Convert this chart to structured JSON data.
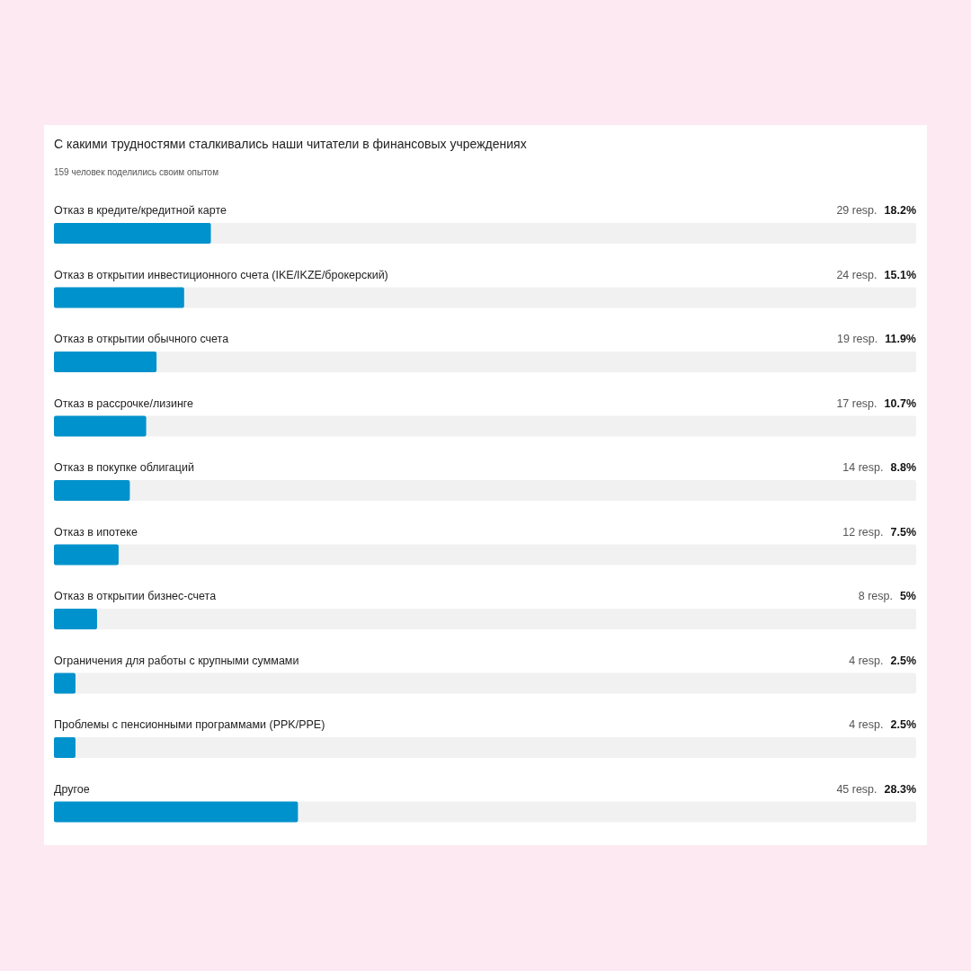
{
  "chart_data": {
    "type": "bar",
    "orientation": "horizontal",
    "title": "С какими трудностями сталкивались наши читатели в финансовых учреждениях",
    "subtitle": "159 человек поделились своим опытом",
    "categories": [
      "Отказ в кредите/кредитной карте",
      "Отказ в открытии инвестиционного счета (IKE/IKZE/брокерский)",
      "Отказ в открытии обычного счета",
      "Отказ в рассрочке/лизинге",
      "Отказ в покупке облигаций",
      "Отказ в ипотеке",
      "Отказ в открытии бизнес-счета",
      "Ограничения для работы с крупными суммами",
      "Проблемы с пенсионными программами (PPK/PPE)",
      "Другое"
    ],
    "values": [
      18.2,
      15.1,
      11.9,
      10.7,
      8.8,
      7.5,
      5,
      2.5,
      2.5,
      28.3
    ],
    "value_labels": [
      "18.2%",
      "15.1%",
      "11.9%",
      "10.7%",
      "8.8%",
      "7.5%",
      "5%",
      "2.5%",
      "2.5%",
      "28.3%"
    ],
    "annotations": [
      "29 resp.",
      "24 resp.",
      "19 resp.",
      "17 resp.",
      "14 resp.",
      "12 resp.",
      "8 resp.",
      "4 resp.",
      "4 resp.",
      "45 resp."
    ],
    "color": "#0092cc",
    "xlim": [
      0,
      100
    ],
    "tick_labels": false
  }
}
